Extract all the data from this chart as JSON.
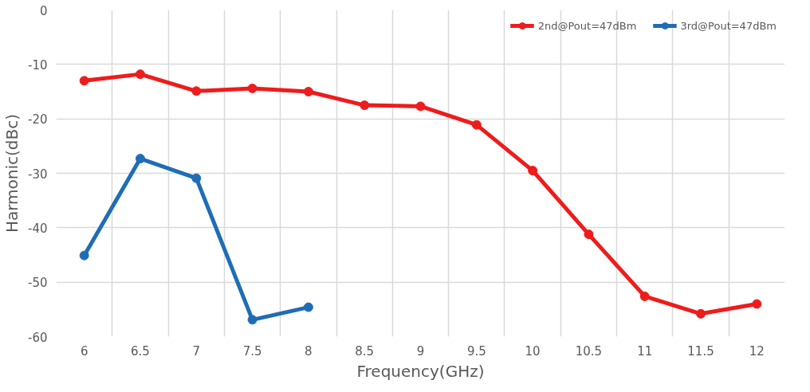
{
  "chart_data": {
    "type": "line",
    "xlabel": "Frequency(GHz)",
    "ylabel": "Harmonic(dBc)",
    "categories": [
      "6",
      "6.5",
      "7",
      "7.5",
      "8",
      "8.5",
      "9",
      "9.5",
      "10",
      "10.5",
      "11",
      "11.5",
      "12"
    ],
    "series": [
      {
        "name": "2nd@Pout=47dBm",
        "color": "#ee1c1c",
        "values": [
          -13.0,
          -11.8,
          -14.9,
          -14.4,
          -15.0,
          -17.5,
          -17.7,
          -21.1,
          -29.5,
          -41.2,
          -52.6,
          -55.8,
          -54.0
        ]
      },
      {
        "name": "3rd@Pout=47dBm",
        "color": "#1f6db5",
        "values": [
          -45.1,
          -27.3,
          -30.9,
          -56.9,
          -54.6,
          null,
          null,
          null,
          null,
          null,
          null,
          null,
          null
        ]
      }
    ],
    "ylim": [
      -60,
      0
    ],
    "yticks": [
      -60,
      -50,
      -40,
      -30,
      -20,
      -10,
      0
    ],
    "grid": true,
    "legend": "top right",
    "marker": "circle",
    "line_style": "solid"
  }
}
